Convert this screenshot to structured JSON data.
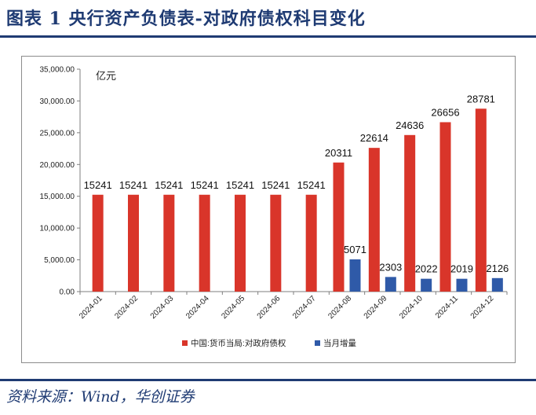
{
  "figure_title": "图表 1    央行资产负债表-对政府债权科目变化",
  "source": "资料来源：Wind，华创证券",
  "colors": {
    "series1": "#d9352a",
    "series2": "#2f5aa8",
    "heading": "#1f3b73"
  },
  "chart_data": {
    "type": "bar",
    "ylabel": "亿元",
    "ylim": [
      0,
      35000
    ],
    "yticks": [
      "0.00",
      "5,000.00",
      "10,000.00",
      "15,000.00",
      "20,000.00",
      "25,000.00",
      "30,000.00",
      "35,000.00"
    ],
    "grid": false,
    "legend_position": "bottom",
    "categories": [
      "2024-01",
      "2024-02",
      "2024-03",
      "2024-04",
      "2024-05",
      "2024-06",
      "2024-07",
      "2024-08",
      "2024-09",
      "2024-10",
      "2024-11",
      "2024-12"
    ],
    "series": [
      {
        "name": "中国:货币当局:对政府债权",
        "values": [
          15241,
          15241,
          15241,
          15241,
          15241,
          15241,
          15241,
          20311,
          22614,
          24636,
          26656,
          28781
        ]
      },
      {
        "name": "当月增量",
        "values": [
          null,
          null,
          null,
          null,
          null,
          null,
          null,
          5071,
          2303,
          2022,
          2019,
          2126
        ]
      }
    ]
  }
}
